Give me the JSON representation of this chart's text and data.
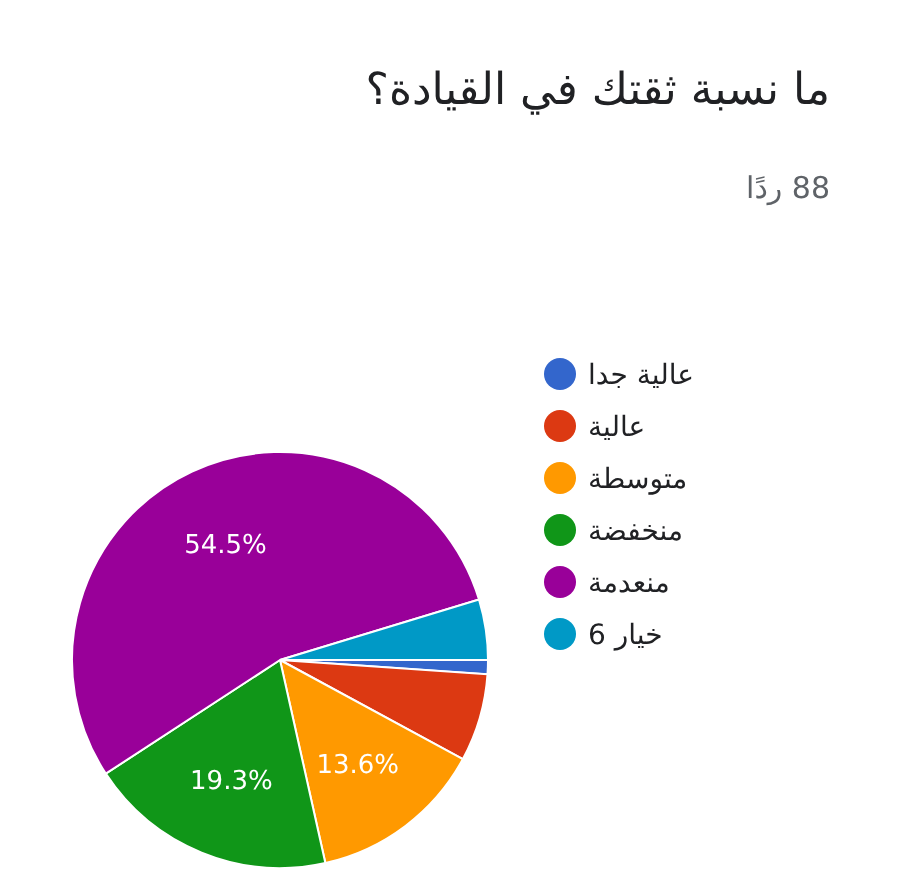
{
  "chart_data": {
    "type": "pie",
    "title": "ما نسبة ثقتك في القيادة؟",
    "subtitle": "88 ردًا",
    "categories": [
      "عالية جدا",
      "عالية",
      "متوسطة",
      "منخفضة",
      "منعدمة",
      "خيار 6"
    ],
    "values": [
      1.1,
      6.8,
      13.6,
      19.3,
      54.5,
      4.7
    ],
    "colors": [
      "#3366cc",
      "#dc3912",
      "#ff9900",
      "#109618",
      "#990099",
      "#0099c6"
    ],
    "value_labels": [
      null,
      null,
      "13.6%",
      "19.3%",
      "54.5%",
      null
    ],
    "legend": "right"
  }
}
